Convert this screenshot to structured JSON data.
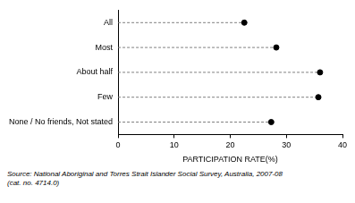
{
  "chart_data": {
    "type": "dot",
    "categories": [
      "All",
      "Most",
      "About half",
      "Few",
      "None / No friends, Not stated"
    ],
    "values": [
      22.5,
      28.2,
      36,
      35.7,
      27.3
    ],
    "color": "#000000",
    "marker": "circle",
    "orientation": "horizontal",
    "xlabel": "PARTICIPATION RATE(%)",
    "xlim": [
      0,
      40
    ],
    "xticks": [
      0,
      10,
      20,
      30,
      40
    ],
    "grid": false,
    "source": [
      "Source: National Aboriginal and Torres Strait Islander Social Survey, Australia, 2007-08",
      "(cat. no. 4714.0)"
    ]
  }
}
